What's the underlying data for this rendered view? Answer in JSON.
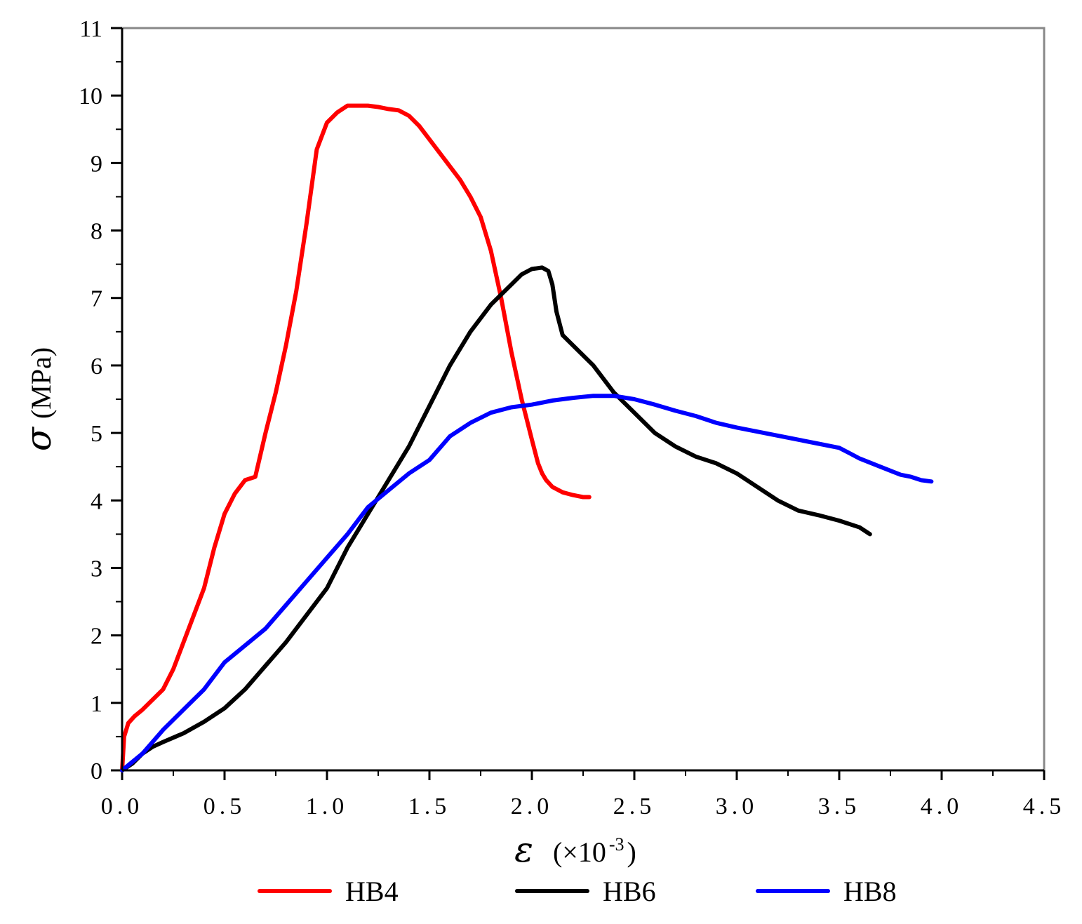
{
  "chart_data": {
    "type": "line",
    "title": "",
    "xlabel": {
      "symbol": "ε",
      "unit": "(×10",
      "exponent": "-3",
      "close": ")"
    },
    "ylabel": {
      "symbol": "σ",
      "unit": "(MPa)"
    },
    "xlim": [
      0,
      4.5
    ],
    "ylim": [
      0,
      11
    ],
    "xticks": [
      0,
      0.5,
      1,
      1.5,
      2,
      2.5,
      3,
      3.5,
      4,
      4.5
    ],
    "xtick_labels": [
      "0.0",
      "0.5",
      "1.0",
      "1.5",
      "2.0",
      "2.5",
      "3.0",
      "3.5",
      "4.0",
      "4.5"
    ],
    "yticks": [
      0,
      1,
      2,
      3,
      4,
      5,
      6,
      7,
      8,
      9,
      10,
      11
    ],
    "ytick_labels": [
      "0",
      "1",
      "2",
      "3",
      "4",
      "5",
      "6",
      "7",
      "8",
      "9",
      "10",
      "11"
    ],
    "legend_position": "bottom",
    "series": [
      {
        "name": "HB4",
        "color": "#ff0000",
        "x": [
          0,
          0.01,
          0.03,
          0.06,
          0.1,
          0.15,
          0.2,
          0.25,
          0.3,
          0.35,
          0.4,
          0.45,
          0.5,
          0.55,
          0.6,
          0.65,
          0.7,
          0.75,
          0.8,
          0.85,
          0.9,
          0.95,
          1.0,
          1.05,
          1.1,
          1.15,
          1.2,
          1.25,
          1.3,
          1.35,
          1.4,
          1.45,
          1.5,
          1.55,
          1.6,
          1.65,
          1.7,
          1.75,
          1.8,
          1.85,
          1.9,
          1.95,
          2.0,
          2.03,
          2.05,
          2.07,
          2.1,
          2.15,
          2.2,
          2.25,
          2.28
        ],
        "y": [
          0,
          0.5,
          0.7,
          0.8,
          0.9,
          1.05,
          1.2,
          1.5,
          1.9,
          2.3,
          2.7,
          3.3,
          3.8,
          4.1,
          4.3,
          4.35,
          5.0,
          5.6,
          6.3,
          7.1,
          8.1,
          9.2,
          9.6,
          9.75,
          9.85,
          9.85,
          9.85,
          9.83,
          9.8,
          9.78,
          9.7,
          9.55,
          9.35,
          9.15,
          8.95,
          8.75,
          8.5,
          8.2,
          7.7,
          7.0,
          6.2,
          5.5,
          4.9,
          4.55,
          4.4,
          4.3,
          4.2,
          4.12,
          4.08,
          4.05,
          4.05
        ]
      },
      {
        "name": "HB6",
        "color": "#000000",
        "x": [
          0,
          0.05,
          0.1,
          0.15,
          0.2,
          0.3,
          0.4,
          0.5,
          0.6,
          0.7,
          0.8,
          0.9,
          1.0,
          1.1,
          1.2,
          1.3,
          1.4,
          1.5,
          1.6,
          1.7,
          1.8,
          1.9,
          1.95,
          2.0,
          2.05,
          2.08,
          2.1,
          2.12,
          2.15,
          2.2,
          2.3,
          2.4,
          2.5,
          2.6,
          2.7,
          2.8,
          2.9,
          3.0,
          3.1,
          3.2,
          3.3,
          3.4,
          3.5,
          3.6,
          3.65
        ],
        "y": [
          0,
          0.1,
          0.25,
          0.35,
          0.42,
          0.55,
          0.72,
          0.92,
          1.2,
          1.55,
          1.9,
          2.3,
          2.7,
          3.3,
          3.8,
          4.3,
          4.8,
          5.4,
          6.0,
          6.5,
          6.9,
          7.2,
          7.35,
          7.43,
          7.45,
          7.4,
          7.2,
          6.8,
          6.45,
          6.3,
          6.0,
          5.6,
          5.3,
          5.0,
          4.8,
          4.65,
          4.55,
          4.4,
          4.2,
          4.0,
          3.85,
          3.78,
          3.7,
          3.6,
          3.5
        ]
      },
      {
        "name": "HB8",
        "color": "#0000ff",
        "x": [
          0,
          0.1,
          0.2,
          0.3,
          0.4,
          0.5,
          0.6,
          0.7,
          0.8,
          0.9,
          1.0,
          1.1,
          1.2,
          1.3,
          1.4,
          1.5,
          1.6,
          1.7,
          1.8,
          1.9,
          2.0,
          2.1,
          2.2,
          2.3,
          2.4,
          2.5,
          2.6,
          2.7,
          2.8,
          2.9,
          3.0,
          3.1,
          3.2,
          3.3,
          3.4,
          3.5,
          3.55,
          3.6,
          3.7,
          3.8,
          3.85,
          3.9,
          3.95
        ],
        "y": [
          0,
          0.25,
          0.6,
          0.9,
          1.2,
          1.6,
          1.85,
          2.1,
          2.45,
          2.8,
          3.15,
          3.5,
          3.9,
          4.15,
          4.4,
          4.6,
          4.95,
          5.15,
          5.3,
          5.38,
          5.42,
          5.48,
          5.52,
          5.55,
          5.55,
          5.5,
          5.42,
          5.33,
          5.25,
          5.15,
          5.08,
          5.02,
          4.96,
          4.9,
          4.84,
          4.78,
          4.7,
          4.62,
          4.5,
          4.38,
          4.35,
          4.3,
          4.28
        ]
      }
    ]
  }
}
